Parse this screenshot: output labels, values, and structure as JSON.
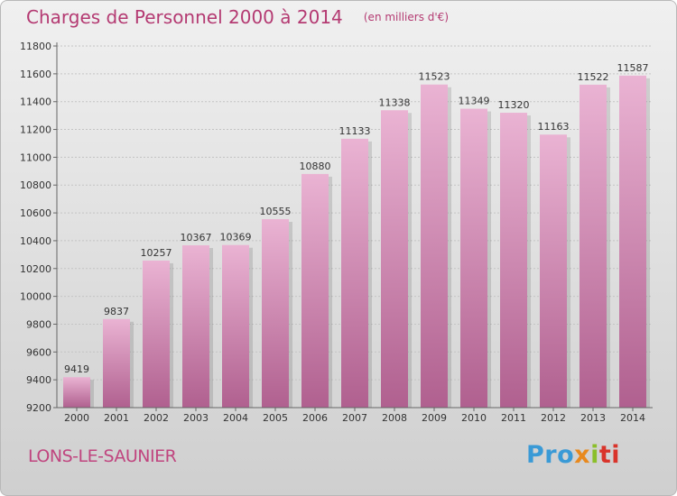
{
  "chart_data": {
    "type": "bar",
    "title": "Charges de Personnel 2000 à 2014",
    "unit_note": "(en milliers d'€)",
    "categories": [
      "2000",
      "2001",
      "2002",
      "2003",
      "2004",
      "2005",
      "2006",
      "2007",
      "2008",
      "2009",
      "2010",
      "2011",
      "2012",
      "2013",
      "2014"
    ],
    "values": [
      9419,
      9837,
      10257,
      10367,
      10369,
      10555,
      10880,
      11133,
      11338,
      11523,
      11349,
      11320,
      11163,
      11522,
      11587
    ],
    "ylim": [
      9200,
      11800
    ],
    "yticks": [
      9200,
      9400,
      9600,
      9800,
      10000,
      10200,
      10400,
      10600,
      10800,
      11000,
      11200,
      11400,
      11600,
      11800
    ],
    "grid": true,
    "bar_color": "#e2a3c8"
  },
  "footer": {
    "city": "LONS-LE-SAUNIER",
    "logo_parts": [
      "Pro",
      "x",
      "i",
      "ti"
    ]
  },
  "colors": {
    "title": "#b43a72",
    "bar_light": "#eab3d3",
    "bar_dark": "#b0608f"
  }
}
